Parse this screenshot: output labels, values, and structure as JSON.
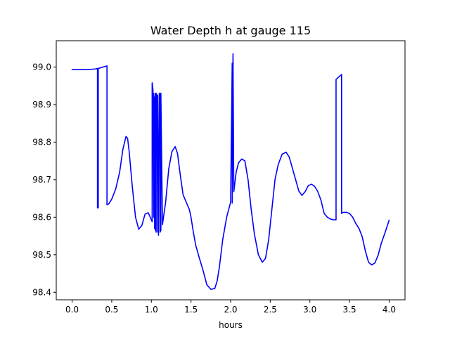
{
  "chart_data": {
    "type": "line",
    "title": "Water Depth h at gauge 115",
    "xlabel": "hours",
    "ylabel": "",
    "xlim": [
      -0.2,
      4.2
    ],
    "ylim": [
      98.38,
      99.07
    ],
    "xticks": [
      0.0,
      0.5,
      1.0,
      1.5,
      2.0,
      2.5,
      3.0,
      3.5,
      4.0
    ],
    "xtick_labels": [
      "0.0",
      "0.5",
      "1.0",
      "1.5",
      "2.0",
      "2.5",
      "3.0",
      "3.5",
      "4.0"
    ],
    "yticks": [
      98.4,
      98.5,
      98.6,
      98.7,
      98.8,
      98.9,
      99.0
    ],
    "ytick_labels": [
      "98.4",
      "98.5",
      "98.6",
      "98.7",
      "98.8",
      "98.9",
      "99.0"
    ],
    "grid": false,
    "line_color": "#0000ff",
    "series": [
      {
        "x": [
          0.0,
          0.1,
          0.2,
          0.3,
          0.32,
          0.32,
          0.33,
          0.33,
          0.36,
          0.44,
          0.44,
          0.46,
          0.5,
          0.55,
          0.6,
          0.64,
          0.68,
          0.7,
          0.72,
          0.76,
          0.8,
          0.84,
          0.88,
          0.92,
          0.96,
          0.99,
          1.01,
          1.01,
          1.02,
          1.03,
          1.03,
          1.04,
          1.04,
          1.05,
          1.05,
          1.06,
          1.06,
          1.07,
          1.08,
          1.08,
          1.09,
          1.1,
          1.11,
          1.11,
          1.12,
          1.12,
          1.14,
          1.18,
          1.22,
          1.26,
          1.3,
          1.33,
          1.36,
          1.4,
          1.44,
          1.48,
          1.5,
          1.53,
          1.56,
          1.6,
          1.65,
          1.7,
          1.75,
          1.8,
          1.83,
          1.86,
          1.9,
          1.95,
          2.0,
          2.02,
          2.02,
          2.03,
          2.03,
          2.04,
          2.07,
          2.1,
          2.14,
          2.18,
          2.22,
          2.26,
          2.3,
          2.35,
          2.4,
          2.44,
          2.48,
          2.52,
          2.56,
          2.6,
          2.65,
          2.7,
          2.74,
          2.78,
          2.82,
          2.86,
          2.9,
          2.94,
          2.98,
          3.02,
          3.06,
          3.1,
          3.14,
          3.18,
          3.22,
          3.26,
          3.3,
          3.33,
          3.33,
          3.4,
          3.4,
          3.42,
          3.46,
          3.5,
          3.54,
          3.58,
          3.62,
          3.66,
          3.7,
          3.74,
          3.78,
          3.82,
          3.86,
          3.9,
          3.95,
          4.0
        ],
        "y": [
          98.993,
          98.993,
          98.993,
          98.995,
          98.996,
          98.625,
          98.625,
          98.996,
          98.998,
          99.003,
          98.633,
          98.635,
          98.648,
          98.675,
          98.72,
          98.78,
          98.815,
          98.81,
          98.775,
          98.68,
          98.6,
          98.568,
          98.578,
          98.608,
          98.612,
          98.598,
          98.588,
          98.958,
          98.94,
          98.6,
          98.93,
          98.57,
          98.92,
          98.565,
          98.93,
          98.56,
          98.93,
          98.925,
          98.56,
          98.925,
          98.552,
          98.93,
          98.93,
          98.56,
          98.565,
          98.93,
          98.58,
          98.64,
          98.73,
          98.775,
          98.788,
          98.77,
          98.72,
          98.66,
          98.64,
          98.62,
          98.6,
          98.56,
          98.525,
          98.495,
          98.46,
          98.42,
          98.408,
          98.41,
          98.43,
          98.47,
          98.54,
          98.6,
          98.64,
          99.01,
          98.638,
          99.035,
          99.035,
          98.668,
          98.72,
          98.745,
          98.755,
          98.75,
          98.7,
          98.62,
          98.555,
          98.5,
          98.48,
          98.49,
          98.54,
          98.62,
          98.7,
          98.74,
          98.768,
          98.773,
          98.76,
          98.73,
          98.7,
          98.67,
          98.658,
          98.668,
          98.684,
          98.688,
          98.682,
          98.668,
          98.645,
          98.61,
          98.6,
          98.595,
          98.593,
          98.593,
          98.967,
          98.98,
          98.61,
          98.613,
          98.613,
          98.61,
          98.6,
          98.583,
          98.57,
          98.548,
          98.51,
          98.48,
          98.473,
          98.478,
          98.498,
          98.53,
          98.56,
          98.592
        ]
      }
    ]
  }
}
